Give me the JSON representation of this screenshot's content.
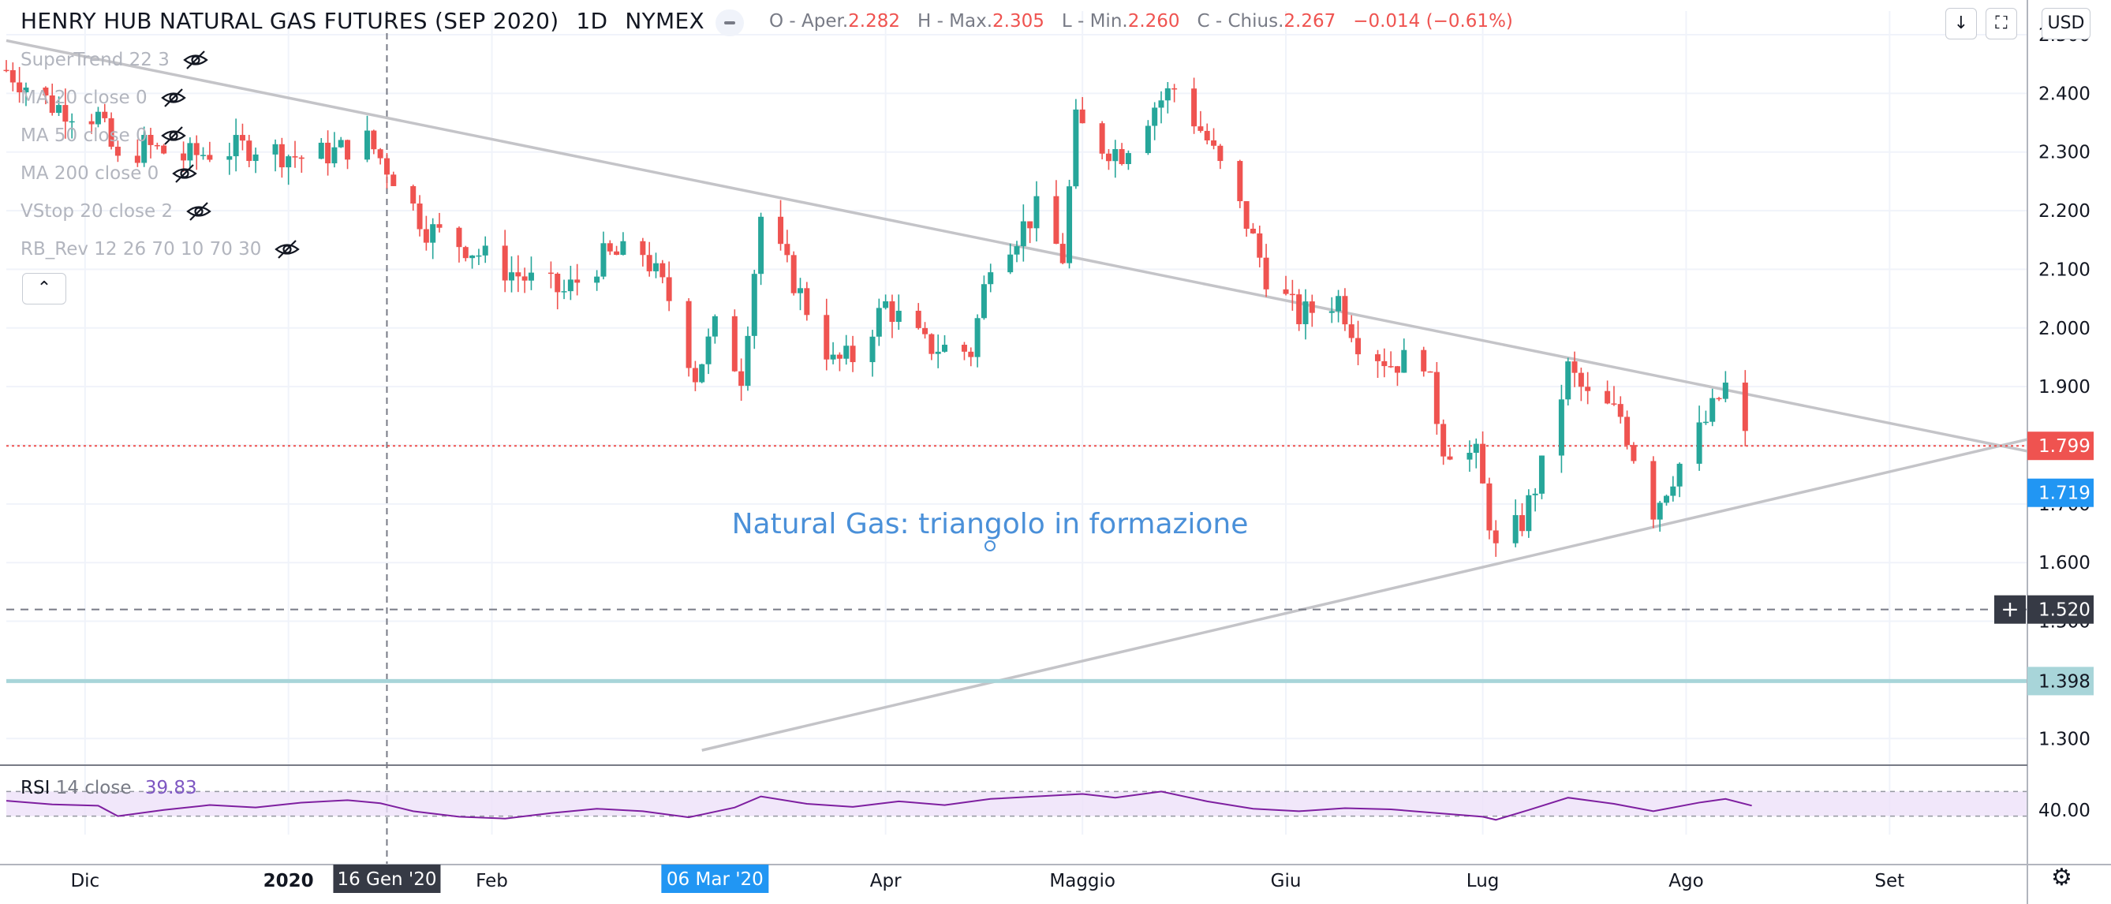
{
  "header": {
    "title": "HENRY HUB NATURAL GAS FUTURES (SEP 2020)",
    "interval": "1D",
    "exchange": "NYMEX",
    "o_label": "O - Aper.",
    "o_value": "2.282",
    "h_label": "H - Max.",
    "h_value": "2.305",
    "l_label": "L - Min.",
    "l_value": "2.260",
    "c_label": "C - Chius.",
    "c_value": "2.267",
    "change": "−0.014 (−0.61%)",
    "currency": "USD"
  },
  "indicators": [
    {
      "label": "SuperTrend 22 3"
    },
    {
      "label": "MA 20 close 0"
    },
    {
      "label": "MA 50 close 0"
    },
    {
      "label": "MA 200 close 0"
    },
    {
      "label": "VStop 20 close 2"
    },
    {
      "label": "RB_Rev 12 26 70 10 70 30"
    }
  ],
  "rsi_legend": {
    "name": "RSI",
    "params": "14 close",
    "value": "39.83"
  },
  "chart_data": {
    "type": "candlestick",
    "ylim": [
      1.26,
      2.5
    ],
    "y_ticks": [
      "2.500",
      "2.400",
      "2.300",
      "2.200",
      "2.100",
      "2.000",
      "1.900",
      "1.800",
      "1.700",
      "1.600",
      "1.500",
      "1.400",
      "1.300"
    ],
    "x_ticks": [
      {
        "label": "Dic",
        "date": "2019-12-01"
      },
      {
        "label": "2020",
        "date": "2020-01-01",
        "bold": true
      },
      {
        "label": "Feb",
        "date": "2020-02-01"
      },
      {
        "label": "Apr",
        "date": "2020-04-01"
      },
      {
        "label": "Maggio",
        "date": "2020-05-01"
      },
      {
        "label": "Giu",
        "date": "2020-06-01"
      },
      {
        "label": "Lug",
        "date": "2020-07-01"
      },
      {
        "label": "Ago",
        "date": "2020-08-01"
      },
      {
        "label": "Set",
        "date": "2020-09-01"
      }
    ],
    "x_range": [
      "2019-11-19",
      "2020-09-22"
    ],
    "crosshair": [
      {
        "label": "16 Gen '20",
        "date": "2020-01-16"
      },
      {
        "label": "06 Mar '20",
        "date": "2020-03-06"
      }
    ],
    "price_labels": [
      {
        "value": 1.799,
        "label": "1.799",
        "color": "#ef5350",
        "style": "dotted-line"
      },
      {
        "value": 1.719,
        "label": "1.719",
        "color": "#2196f3",
        "style": "none"
      },
      {
        "value": 1.52,
        "label": "1.520",
        "color": "#363a45",
        "style": "dashed-line"
      },
      {
        "value": 1.398,
        "label": "1.398",
        "color": "#a8d5d9",
        "style": "solid-line"
      }
    ],
    "trendlines": [
      {
        "from": {
          "date": "2019-11-19",
          "value": 2.49
        },
        "to": {
          "date": "2020-09-22",
          "value": 1.79
        }
      },
      {
        "from": {
          "date": "2020-03-04",
          "value": 1.28
        },
        "to": {
          "date": "2020-09-22",
          "value": 1.81
        }
      }
    ],
    "annotation": "Natural Gas: triangolo in formazione",
    "close_path": [
      [
        "2019-11-19",
        2.44
      ],
      [
        "2019-11-26",
        2.38
      ],
      [
        "2019-12-03",
        2.36
      ],
      [
        "2019-12-06",
        2.28
      ],
      [
        "2019-12-10",
        2.31
      ],
      [
        "2019-12-16",
        2.29
      ],
      [
        "2019-12-20",
        2.3
      ],
      [
        "2019-12-27",
        2.31
      ],
      [
        "2020-01-03",
        2.29
      ],
      [
        "2020-01-08",
        2.3
      ],
      [
        "2020-01-13",
        2.32
      ],
      [
        "2020-01-17",
        2.26
      ],
      [
        "2020-01-22",
        2.17
      ],
      [
        "2020-01-28",
        2.14
      ],
      [
        "2020-02-03",
        2.1
      ],
      [
        "2020-02-07",
        2.08
      ],
      [
        "2020-02-12",
        2.06
      ],
      [
        "2020-02-18",
        2.12
      ],
      [
        "2020-02-24",
        2.13
      ],
      [
        "2020-02-28",
        2.05
      ],
      [
        "2020-03-03",
        1.92
      ],
      [
        "2020-03-06",
        2.0
      ],
      [
        "2020-03-10",
        1.92
      ],
      [
        "2020-03-13",
        2.19
      ],
      [
        "2020-03-18",
        2.08
      ],
      [
        "2020-03-24",
        1.94
      ],
      [
        "2020-03-27",
        1.95
      ],
      [
        "2020-04-01",
        2.04
      ],
      [
        "2020-04-07",
        1.97
      ],
      [
        "2020-04-14",
        1.96
      ],
      [
        "2020-04-17",
        2.12
      ],
      [
        "2020-04-21",
        2.16
      ],
      [
        "2020-04-24",
        2.2
      ],
      [
        "2020-04-28",
        2.12
      ],
      [
        "2020-04-30",
        2.35
      ],
      [
        "2020-05-04",
        2.31
      ],
      [
        "2020-05-07",
        2.3
      ],
      [
        "2020-05-12",
        2.38
      ],
      [
        "2020-05-15",
        2.41
      ],
      [
        "2020-05-20",
        2.32
      ],
      [
        "2020-05-26",
        2.18
      ],
      [
        "2020-05-29",
        2.09
      ],
      [
        "2020-06-03",
        2.02
      ],
      [
        "2020-06-09",
        2.05
      ],
      [
        "2020-06-12",
        1.98
      ],
      [
        "2020-06-17",
        1.94
      ],
      [
        "2020-06-22",
        1.95
      ],
      [
        "2020-06-25",
        1.8
      ],
      [
        "2020-06-30",
        1.78
      ],
      [
        "2020-07-03",
        1.62
      ],
      [
        "2020-07-07",
        1.67
      ],
      [
        "2020-07-10",
        1.76
      ],
      [
        "2020-07-14",
        1.93
      ],
      [
        "2020-07-17",
        1.88
      ],
      [
        "2020-07-22",
        1.85
      ],
      [
        "2020-07-27",
        1.69
      ],
      [
        "2020-07-30",
        1.75
      ],
      [
        "2020-08-04",
        1.84
      ],
      [
        "2020-08-07",
        1.9
      ],
      [
        "2020-08-10",
        1.81
      ]
    ],
    "rsi": {
      "levels": [
        70,
        30
      ],
      "tick": "40.00",
      "path": [
        [
          "2019-11-19",
          55
        ],
        [
          "2019-11-26",
          49
        ],
        [
          "2019-12-03",
          47
        ],
        [
          "2019-12-06",
          30
        ],
        [
          "2019-12-13",
          40
        ],
        [
          "2019-12-20",
          48
        ],
        [
          "2019-12-27",
          44
        ],
        [
          "2020-01-03",
          52
        ],
        [
          "2020-01-10",
          56
        ],
        [
          "2020-01-15",
          51
        ],
        [
          "2020-01-20",
          38
        ],
        [
          "2020-01-27",
          29
        ],
        [
          "2020-02-03",
          26
        ],
        [
          "2020-02-10",
          35
        ],
        [
          "2020-02-17",
          42
        ],
        [
          "2020-02-24",
          38
        ],
        [
          "2020-03-02",
          28
        ],
        [
          "2020-03-09",
          44
        ],
        [
          "2020-03-13",
          62
        ],
        [
          "2020-03-20",
          50
        ],
        [
          "2020-03-27",
          45
        ],
        [
          "2020-04-03",
          54
        ],
        [
          "2020-04-10",
          48
        ],
        [
          "2020-04-17",
          58
        ],
        [
          "2020-04-24",
          62
        ],
        [
          "2020-05-01",
          66
        ],
        [
          "2020-05-06",
          60
        ],
        [
          "2020-05-13",
          70
        ],
        [
          "2020-05-20",
          54
        ],
        [
          "2020-05-27",
          42
        ],
        [
          "2020-06-03",
          38
        ],
        [
          "2020-06-10",
          43
        ],
        [
          "2020-06-17",
          41
        ],
        [
          "2020-06-24",
          35
        ],
        [
          "2020-07-01",
          29
        ],
        [
          "2020-07-03",
          24
        ],
        [
          "2020-07-08",
          40
        ],
        [
          "2020-07-14",
          60
        ],
        [
          "2020-07-21",
          50
        ],
        [
          "2020-07-27",
          38
        ],
        [
          "2020-08-03",
          52
        ],
        [
          "2020-08-07",
          58
        ],
        [
          "2020-08-11",
          47
        ]
      ]
    }
  }
}
